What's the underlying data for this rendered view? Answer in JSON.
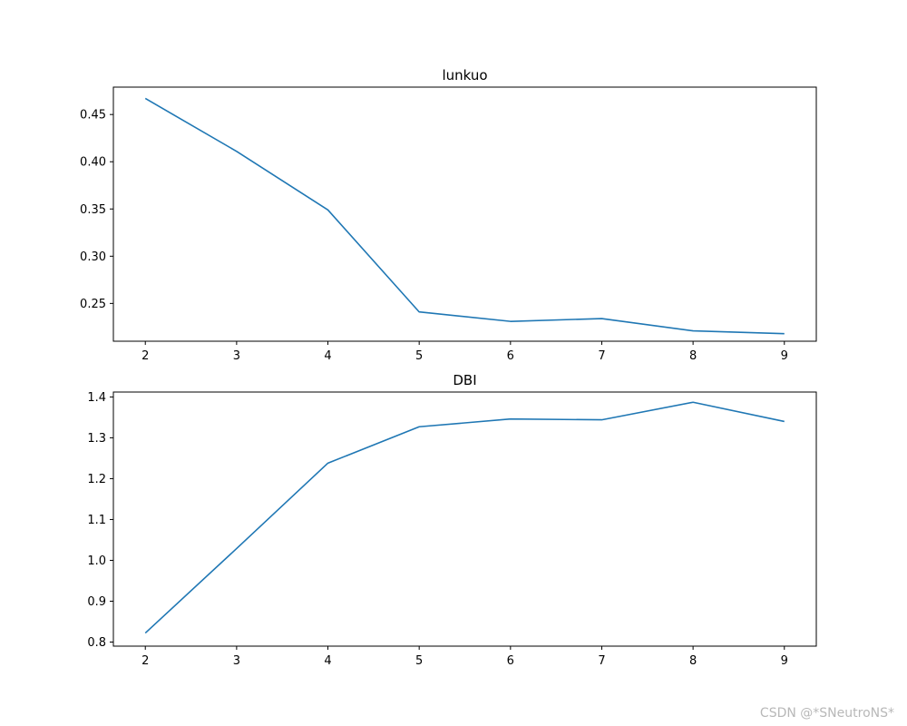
{
  "chart_data": [
    {
      "type": "line",
      "title": "lunkuo",
      "xlabel": "",
      "ylabel": "",
      "x": [
        2,
        3,
        4,
        5,
        6,
        7,
        8,
        9
      ],
      "series": [
        {
          "values": [
            0.467,
            0.411,
            0.349,
            0.241,
            0.231,
            0.234,
            0.221,
            0.218
          ],
          "color": "#1f77b4"
        }
      ],
      "xticks": [
        2,
        3,
        4,
        5,
        6,
        7,
        8,
        9
      ],
      "yticks": [
        "0.25",
        "0.30",
        "0.35",
        "0.40",
        "0.45"
      ],
      "ylim": [
        0.21,
        0.479
      ],
      "xlim": [
        1.65,
        9.35
      ],
      "grid": false
    },
    {
      "type": "line",
      "title": "DBI",
      "xlabel": "",
      "ylabel": "",
      "x": [
        2,
        3,
        4,
        5,
        6,
        7,
        8,
        9
      ],
      "series": [
        {
          "values": [
            0.822,
            1.029,
            1.238,
            1.327,
            1.346,
            1.344,
            1.387,
            1.34
          ],
          "color": "#1f77b4"
        }
      ],
      "xticks": [
        2,
        3,
        4,
        5,
        6,
        7,
        8,
        9
      ],
      "yticks": [
        "0.8",
        "0.9",
        "1.0",
        "1.1",
        "1.2",
        "1.3",
        "1.4"
      ],
      "ylim": [
        0.79,
        1.412
      ],
      "xlim": [
        1.65,
        9.35
      ],
      "grid": false
    }
  ],
  "watermark": "CSDN @*SNeutroNS*"
}
